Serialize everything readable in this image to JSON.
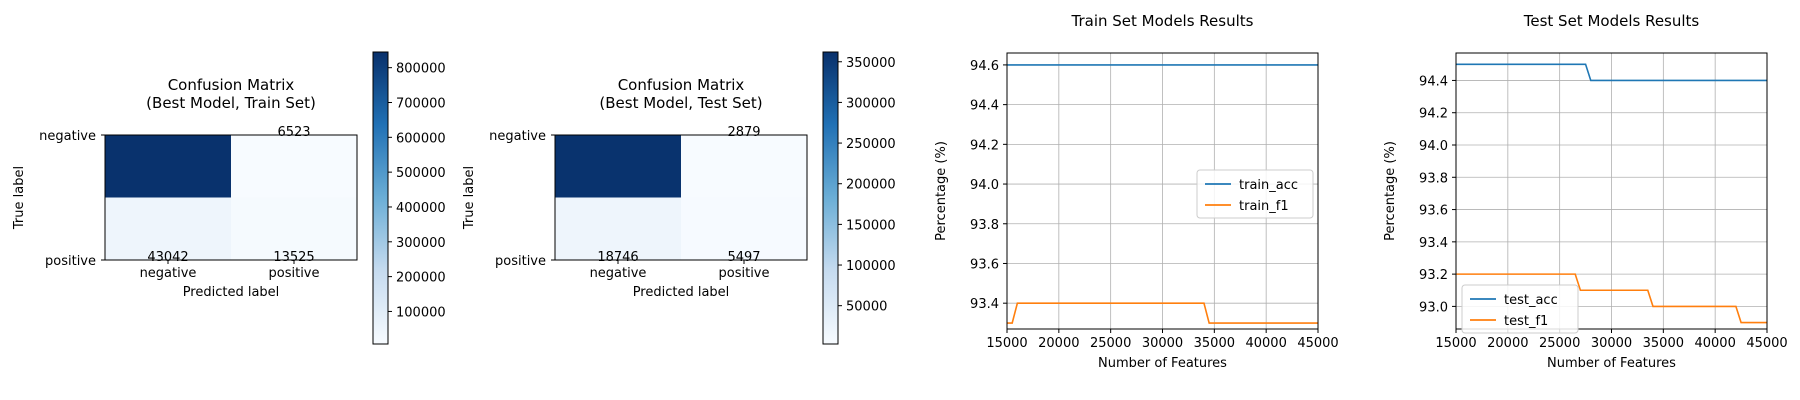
{
  "chart_data": [
    {
      "type": "heatmap",
      "title": "Confusion Matrix\n(Best Model, Train Set)",
      "xlabel": "Predicted label",
      "ylabel": "True label",
      "x_categories": [
        "negative",
        "positive"
      ],
      "y_categories": [
        "negative",
        "positive"
      ],
      "values": [
        [
          838000,
          6523
        ],
        [
          43042,
          13525
        ]
      ],
      "annotations": [
        {
          "row": 0,
          "col": 1,
          "text": "6523"
        },
        {
          "row": 1,
          "col": 0,
          "text": "43042"
        },
        {
          "row": 1,
          "col": 1,
          "text": "13525"
        }
      ],
      "colorbar": {
        "min": 6523,
        "max": 845000,
        "ticks": [
          100000,
          200000,
          300000,
          400000,
          500000,
          600000,
          700000,
          800000
        ],
        "tick_labels": [
          "100000",
          "200000",
          "300000",
          "400000",
          "500000",
          "600000",
          "700000",
          "800000"
        ]
      },
      "colormap": {
        "low": "#f7fbff",
        "mid": "#6baed6",
        "high": "#08306b"
      }
    },
    {
      "type": "heatmap",
      "title": "Confusion Matrix\n(Best Model, Test Set)",
      "xlabel": "Predicted label",
      "ylabel": "True label",
      "x_categories": [
        "negative",
        "positive"
      ],
      "y_categories": [
        "negative",
        "positive"
      ],
      "values": [
        [
          358000,
          2879
        ],
        [
          18746,
          5497
        ]
      ],
      "annotations": [
        {
          "row": 0,
          "col": 1,
          "text": "2879"
        },
        {
          "row": 1,
          "col": 0,
          "text": "18746"
        },
        {
          "row": 1,
          "col": 1,
          "text": "5497"
        }
      ],
      "colorbar": {
        "min": 2879,
        "max": 362000,
        "ticks": [
          50000,
          100000,
          150000,
          200000,
          250000,
          300000,
          350000
        ],
        "tick_labels": [
          "50000",
          "100000",
          "150000",
          "200000",
          "250000",
          "300000",
          "350000"
        ]
      },
      "colormap": {
        "low": "#f7fbff",
        "mid": "#6baed6",
        "high": "#08306b"
      }
    },
    {
      "type": "line",
      "title": "Train Set Models Results",
      "xlabel": "Number of Features",
      "ylabel": "Percentage (%)",
      "xlim": [
        15000,
        45000
      ],
      "ylim": [
        93.27,
        94.66
      ],
      "x_ticks": [
        15000,
        20000,
        25000,
        30000,
        35000,
        40000,
        45000
      ],
      "x_tick_labels": [
        "15000",
        "20000",
        "25000",
        "30000",
        "35000",
        "40000",
        "45000"
      ],
      "y_ticks": [
        93.4,
        93.6,
        93.8,
        94.0,
        94.2,
        94.4,
        94.6
      ],
      "y_tick_labels": [
        "93.4",
        "93.6",
        "93.8",
        "94.0",
        "94.2",
        "94.4",
        "94.6"
      ],
      "grid": true,
      "legend_position": "center-right",
      "series": [
        {
          "name": "train_acc",
          "color": "#1f77b4",
          "points": [
            [
              15000,
              94.6
            ],
            [
              45000,
              94.6
            ]
          ]
        },
        {
          "name": "train_f1",
          "color": "#ff7f0e",
          "points": [
            [
              15000,
              93.3
            ],
            [
              15500,
              93.3
            ],
            [
              16000,
              93.4
            ],
            [
              34000,
              93.4
            ],
            [
              34500,
              93.3
            ],
            [
              45000,
              93.3
            ]
          ]
        }
      ]
    },
    {
      "type": "line",
      "title": "Test Set Models Results",
      "xlabel": "Number of Features",
      "ylabel": "Percentage (%)",
      "xlim": [
        15000,
        45000
      ],
      "ylim": [
        92.86,
        94.57
      ],
      "x_ticks": [
        15000,
        20000,
        25000,
        30000,
        35000,
        40000,
        45000
      ],
      "x_tick_labels": [
        "15000",
        "20000",
        "25000",
        "30000",
        "35000",
        "40000",
        "45000"
      ],
      "y_ticks": [
        93.0,
        93.2,
        93.4,
        93.6,
        93.8,
        94.0,
        94.2,
        94.4
      ],
      "y_tick_labels": [
        "93.0",
        "93.2",
        "93.4",
        "93.6",
        "93.8",
        "94.0",
        "94.2",
        "94.4"
      ],
      "grid": true,
      "legend_position": "lower-left",
      "series": [
        {
          "name": "test_acc",
          "color": "#1f77b4",
          "points": [
            [
              15000,
              94.5
            ],
            [
              27500,
              94.5
            ],
            [
              28000,
              94.4
            ],
            [
              45000,
              94.4
            ]
          ]
        },
        {
          "name": "test_f1",
          "color": "#ff7f0e",
          "points": [
            [
              15000,
              93.2
            ],
            [
              26500,
              93.2
            ],
            [
              27000,
              93.1
            ],
            [
              33500,
              93.1
            ],
            [
              34000,
              93.0
            ],
            [
              42000,
              93.0
            ],
            [
              42500,
              92.9
            ],
            [
              45000,
              92.9
            ]
          ]
        }
      ]
    }
  ]
}
